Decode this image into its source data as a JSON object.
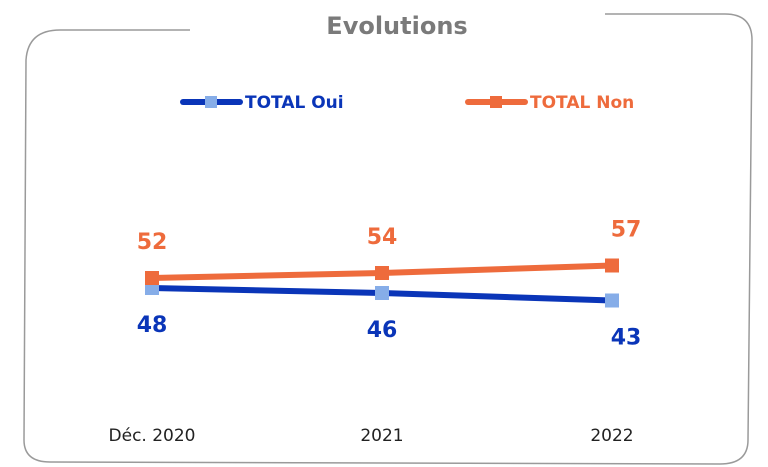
{
  "chart_data": {
    "type": "line",
    "title": "Evolutions",
    "categories": [
      "Déc. 2020",
      "2021",
      "2022"
    ],
    "series": [
      {
        "name": "TOTAL Oui",
        "color": "#0a35b8",
        "marker_color": "#86ade8",
        "values": [
          48,
          46,
          43
        ]
      },
      {
        "name": "TOTAL Non",
        "color": "#ee6b3c",
        "marker_color": "#ee6b3c",
        "values": [
          52,
          54,
          57
        ]
      }
    ],
    "ylim": [
      0,
      100
    ]
  }
}
